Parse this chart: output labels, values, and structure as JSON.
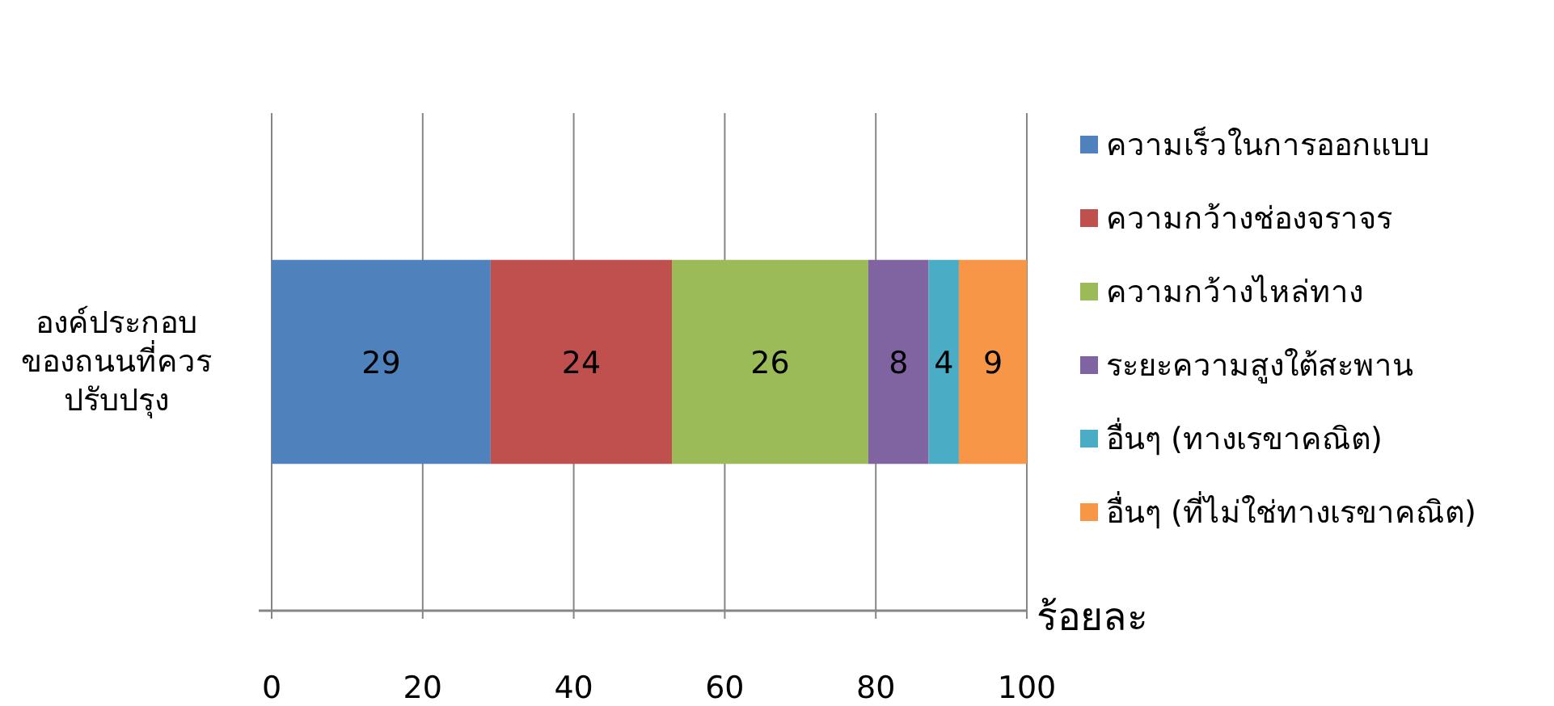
{
  "chart_data": {
    "type": "bar",
    "orientation": "horizontal",
    "stacked": true,
    "categories": [
      "องค์ประกอบของถนนที่ควรปรับปรุง"
    ],
    "series": [
      {
        "name": "ความเร็วในการออกแบบ",
        "color": "#4f81bd",
        "values": [
          29
        ]
      },
      {
        "name": "ความกว้างช่องจราจร",
        "color": "#c0504d",
        "values": [
          24
        ]
      },
      {
        "name": "ความกว้างไหล่ทาง",
        "color": "#9bbb59",
        "values": [
          26
        ]
      },
      {
        "name": "ระยะความสูงใต้สะพาน",
        "color": "#8064a2",
        "values": [
          8
        ]
      },
      {
        "name": "อื่นๆ (ทางเรขาคณิต)",
        "color": "#4bacc6",
        "values": [
          4
        ]
      },
      {
        "name": "อื่นๆ (ที่ไม่ใช่ทางเรขาคณิต)",
        "color": "#f79646",
        "values": [
          9
        ]
      }
    ],
    "xlabel": "ร้อยละ",
    "xlim": [
      0,
      100
    ],
    "xticks": [
      0,
      20,
      40,
      60,
      80,
      100
    ],
    "grid": "x",
    "legend": "right",
    "data_labels": true
  }
}
